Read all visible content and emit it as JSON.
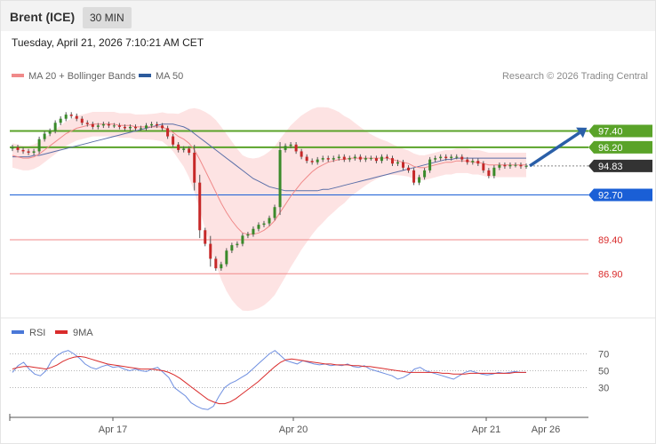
{
  "header": {
    "title": "Brent (ICE)",
    "timeframe": "30 MIN"
  },
  "timestamp": "Tuesday, April 21, 2026 7:10:21 AM CET",
  "legend": {
    "items": [
      {
        "label": "MA 20 + Bollinger Bands",
        "color": "#f08a8a"
      },
      {
        "label": "MA 50",
        "color": "#2c5a9c"
      }
    ],
    "credit": "Research © 2026 Trading Central"
  },
  "chart_data": [
    {
      "type": "candlestick",
      "instrument": "Brent (ICE)",
      "interval": "30 MIN",
      "last_price": 94.83,
      "ylim": [
        84.5,
        100.5
      ],
      "levels": [
        {
          "value": 97.4,
          "label": "97.40",
          "kind": "resistance",
          "color": "#5aa329"
        },
        {
          "value": 96.2,
          "label": "96.20",
          "kind": "resistance",
          "color": "#5aa329"
        },
        {
          "value": 94.83,
          "label": "94.83",
          "kind": "last-price",
          "color": "#333333"
        },
        {
          "value": 92.7,
          "label": "92.70",
          "kind": "pivot",
          "color": "#1a5fd6"
        },
        {
          "value": 89.4,
          "label": "89.40",
          "kind": "support",
          "color": "#d92b2b"
        },
        {
          "value": 86.9,
          "label": "86.90",
          "kind": "support",
          "color": "#d92b2b"
        }
      ],
      "forecast_arrow": {
        "from": 94.83,
        "to": 97.4,
        "direction": "up"
      },
      "close_series": [
        96.2,
        96.0,
        95.9,
        95.8,
        95.9,
        96.8,
        97.2,
        97.4,
        98.0,
        98.3,
        98.6,
        98.5,
        98.3,
        98.0,
        97.9,
        97.7,
        97.8,
        97.9,
        97.8,
        97.8,
        97.7,
        97.6,
        97.7,
        97.6,
        97.6,
        97.8,
        97.9,
        97.8,
        97.6,
        97.0,
        96.4,
        96.0,
        96.1,
        95.8,
        93.6,
        90.1,
        89.1,
        88.0,
        87.3,
        87.6,
        88.6,
        89.0,
        89.1,
        89.7,
        89.8,
        90.2,
        90.5,
        90.6,
        91.0,
        91.8,
        96.0,
        96.3,
        96.4,
        95.9,
        95.5,
        95.2,
        95.1,
        95.3,
        95.4,
        95.3,
        95.4,
        95.5,
        95.3,
        95.4,
        95.5,
        95.3,
        95.4,
        95.4,
        95.2,
        95.5,
        95.4,
        95.0,
        95.1,
        94.7,
        94.5,
        93.6,
        94.0,
        94.5,
        95.3,
        95.4,
        95.5,
        95.4,
        95.5,
        95.5,
        95.3,
        95.1,
        95.2,
        95.0,
        94.5,
        94.1,
        94.7,
        94.9,
        94.8,
        94.9,
        94.9,
        94.8,
        94.83
      ],
      "ma20_series": [
        95.6,
        95.5,
        95.4,
        95.4,
        95.5,
        95.7,
        96.0,
        96.3,
        96.6,
        96.9,
        97.2,
        97.4,
        97.6,
        97.7,
        97.8,
        97.9,
        97.9,
        97.9,
        97.9,
        97.9,
        97.8,
        97.8,
        97.8,
        97.7,
        97.7,
        97.7,
        97.7,
        97.7,
        97.7,
        97.5,
        97.3,
        97.0,
        96.8,
        96.5,
        96.0,
        95.3,
        94.5,
        93.7,
        92.9,
        92.1,
        91.4,
        90.8,
        90.3,
        89.9,
        89.8,
        89.8,
        89.9,
        90.1,
        90.4,
        90.8,
        91.4,
        92.0,
        92.6,
        93.1,
        93.6,
        94.0,
        94.4,
        94.7,
        94.9,
        95.1,
        95.2,
        95.3,
        95.3,
        95.4,
        95.4,
        95.4,
        95.4,
        95.4,
        95.4,
        95.4,
        95.4,
        95.3,
        95.2,
        95.1,
        95.0,
        94.8,
        94.7,
        94.7,
        94.8,
        94.9,
        95.0,
        95.1,
        95.1,
        95.2,
        95.2,
        95.2,
        95.1,
        95.1,
        95.0,
        94.9,
        94.9,
        94.9,
        94.9,
        94.9,
        94.9,
        94.9,
        94.9
      ],
      "ma50_series": [
        95.5,
        95.5,
        95.5,
        95.5,
        95.6,
        95.6,
        95.7,
        95.8,
        95.9,
        96.0,
        96.1,
        96.2,
        96.3,
        96.4,
        96.5,
        96.6,
        96.7,
        96.8,
        96.9,
        97.0,
        97.1,
        97.2,
        97.3,
        97.4,
        97.5,
        97.6,
        97.7,
        97.8,
        97.9,
        97.9,
        97.9,
        97.8,
        97.7,
        97.5,
        97.2,
        96.9,
        96.6,
        96.3,
        96.0,
        95.7,
        95.4,
        95.1,
        94.8,
        94.5,
        94.2,
        93.9,
        93.7,
        93.5,
        93.3,
        93.2,
        93.1,
        93.0,
        93.0,
        93.0,
        93.0,
        93.0,
        93.0,
        93.0,
        93.1,
        93.1,
        93.2,
        93.3,
        93.4,
        93.5,
        93.6,
        93.7,
        93.8,
        93.9,
        94.0,
        94.1,
        94.2,
        94.3,
        94.4,
        94.5,
        94.6,
        94.7,
        94.8,
        94.9,
        95.0,
        95.1,
        95.2,
        95.3,
        95.3,
        95.4,
        95.4,
        95.4,
        95.4,
        95.4,
        95.4,
        95.4,
        95.4,
        95.4,
        95.4,
        95.4,
        95.4,
        95.4,
        95.4
      ]
    },
    {
      "type": "line",
      "series": [
        {
          "name": "RSI",
          "color": "#4a78d8"
        },
        {
          "name": "9MA",
          "color": "#d92b2b"
        }
      ],
      "ylim": [
        0,
        100
      ],
      "yticks": [
        "70",
        "50",
        "30"
      ],
      "rsi_series": [
        48,
        56,
        60,
        52,
        46,
        44,
        50,
        62,
        68,
        72,
        74,
        70,
        65,
        58,
        54,
        52,
        55,
        57,
        54,
        55,
        52,
        50,
        52,
        50,
        49,
        52,
        54,
        48,
        42,
        30,
        25,
        20,
        12,
        8,
        5,
        4,
        8,
        20,
        30,
        35,
        38,
        42,
        46,
        52,
        58,
        64,
        70,
        74,
        68,
        62,
        60,
        58,
        62,
        60,
        58,
        57,
        58,
        56,
        57,
        56,
        58,
        55,
        54,
        56,
        52,
        50,
        48,
        46,
        44,
        40,
        42,
        46,
        52,
        54,
        50,
        48,
        46,
        44,
        42,
        40,
        44,
        48,
        50,
        48,
        46,
        45,
        46,
        48,
        47,
        48,
        49,
        48,
        48
      ],
      "ma9_series": [
        52,
        54,
        55,
        55,
        54,
        53,
        52,
        54,
        57,
        61,
        64,
        66,
        67,
        66,
        64,
        62,
        60,
        58,
        57,
        56,
        55,
        54,
        53,
        52,
        52,
        52,
        51,
        50,
        48,
        45,
        41,
        36,
        31,
        26,
        21,
        16,
        13,
        11,
        11,
        13,
        17,
        22,
        27,
        32,
        37,
        43,
        49,
        55,
        60,
        63,
        64,
        63,
        62,
        61,
        60,
        59,
        58,
        58,
        57,
        57,
        57,
        56,
        56,
        55,
        55,
        54,
        53,
        52,
        51,
        50,
        49,
        48,
        48,
        48,
        48,
        48,
        48,
        47,
        47,
        46,
        46,
        46,
        47,
        47,
        47,
        47,
        47,
        47,
        47,
        47,
        48,
        48,
        48
      ]
    }
  ],
  "x_axis": {
    "ticks": [
      "Apr 17",
      "Apr 20",
      "Apr 21",
      "Apr 26"
    ]
  }
}
